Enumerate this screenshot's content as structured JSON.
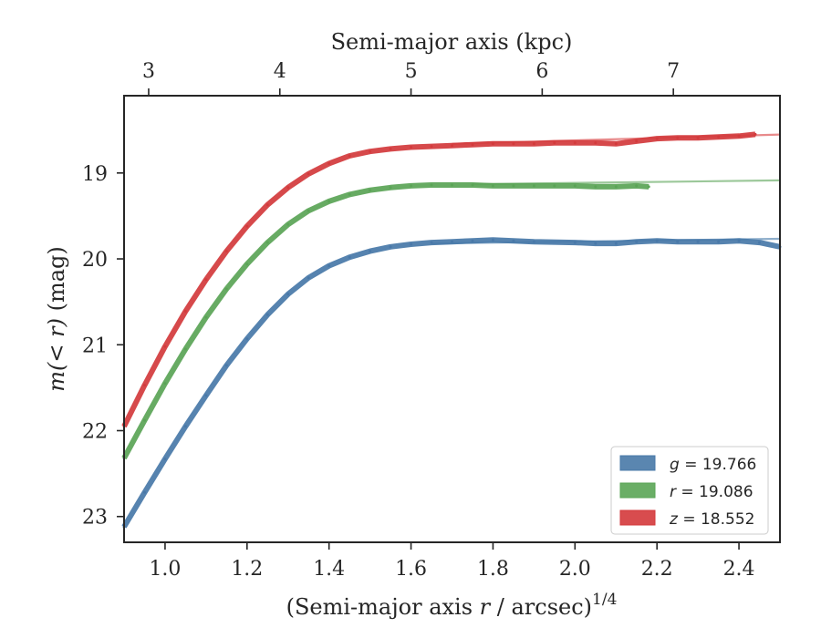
{
  "chart_data": {
    "type": "line",
    "xlabel_prefix": "(Semi-major axis ",
    "xlabel_var": "r",
    "xlabel_suffix": " / arcsec)",
    "xlabel_exp": "1/4",
    "ylabel_func": "m",
    "ylabel_arg": "(< r)",
    "ylabel_unit": " (mag)",
    "top_xlabel": "Semi-major axis (kpc)",
    "xlim": [
      0.9,
      2.5
    ],
    "ylim": [
      23.3,
      18.1
    ],
    "x_ticks": [
      "1.0",
      "1.2",
      "1.4",
      "1.6",
      "1.8",
      "2.0",
      "2.2",
      "2.4"
    ],
    "y_ticks": [
      "19",
      "20",
      "21",
      "22",
      "23"
    ],
    "top_ticks": [
      {
        "label": "3",
        "x": 0.96
      },
      {
        "label": "4",
        "x": 1.28
      },
      {
        "label": "5",
        "x": 1.6
      },
      {
        "label": "6",
        "x": 1.92
      },
      {
        "label": "7",
        "x": 2.24
      }
    ],
    "legend_position": "lower right",
    "series": [
      {
        "name": "g",
        "legend_var": "g",
        "legend_value": " = 19.766",
        "color": "#4878a8",
        "fit_color": "#8eaecb",
        "x": [
          0.9,
          0.95,
          1.0,
          1.05,
          1.1,
          1.15,
          1.2,
          1.25,
          1.3,
          1.35,
          1.4,
          1.45,
          1.5,
          1.55,
          1.6,
          1.65,
          1.7,
          1.75,
          1.8,
          1.85,
          1.9,
          2.0,
          2.05,
          2.1,
          2.15,
          2.2,
          2.25,
          2.3,
          2.35,
          2.4,
          2.45,
          2.5
        ],
        "y": [
          23.12,
          22.72,
          22.33,
          21.95,
          21.59,
          21.24,
          20.93,
          20.65,
          20.41,
          20.22,
          20.08,
          19.98,
          19.91,
          19.86,
          19.83,
          19.81,
          19.8,
          19.79,
          19.78,
          19.79,
          19.8,
          19.81,
          19.82,
          19.82,
          19.8,
          19.79,
          19.8,
          19.8,
          19.8,
          19.79,
          19.81,
          19.86
        ],
        "fit_x": [
          1.65,
          2.5
        ],
        "fit_y": [
          19.82,
          19.766
        ]
      },
      {
        "name": "r",
        "legend_var": "r",
        "legend_value": " = 19.086",
        "color": "#5aa456",
        "fit_color": "#9cc89a",
        "x": [
          0.9,
          0.95,
          1.0,
          1.05,
          1.1,
          1.15,
          1.2,
          1.25,
          1.3,
          1.35,
          1.4,
          1.45,
          1.5,
          1.55,
          1.6,
          1.65,
          1.7,
          1.75,
          1.8,
          1.85,
          1.9,
          1.95,
          2.0,
          2.05,
          2.1,
          2.15,
          2.18
        ],
        "y": [
          22.32,
          21.88,
          21.45,
          21.05,
          20.68,
          20.35,
          20.06,
          19.81,
          19.6,
          19.44,
          19.33,
          19.25,
          19.2,
          19.17,
          19.15,
          19.14,
          19.14,
          19.14,
          19.15,
          19.15,
          19.15,
          19.15,
          19.15,
          19.16,
          19.16,
          19.15,
          19.16
        ],
        "fit_x": [
          1.75,
          2.5
        ],
        "fit_y": [
          19.13,
          19.086
        ]
      },
      {
        "name": "z",
        "legend_var": "z",
        "legend_value": " = 18.552",
        "color": "#d33a3c",
        "fit_color": "#e88a8b",
        "x": [
          0.9,
          0.95,
          1.0,
          1.05,
          1.1,
          1.15,
          1.2,
          1.25,
          1.3,
          1.35,
          1.4,
          1.45,
          1.5,
          1.55,
          1.6,
          1.65,
          1.7,
          1.75,
          1.8,
          1.85,
          1.9,
          1.95,
          2.0,
          2.05,
          2.1,
          2.15,
          2.2,
          2.25,
          2.3,
          2.35,
          2.4,
          2.44
        ],
        "y": [
          21.95,
          21.47,
          21.02,
          20.61,
          20.24,
          19.91,
          19.62,
          19.37,
          19.17,
          19.01,
          18.89,
          18.8,
          18.75,
          18.72,
          18.7,
          18.69,
          18.68,
          18.67,
          18.66,
          18.66,
          18.66,
          18.65,
          18.65,
          18.65,
          18.66,
          18.63,
          18.6,
          18.59,
          18.59,
          18.58,
          18.57,
          18.55
        ],
        "fit_x": [
          1.7,
          2.5
        ],
        "fit_y": [
          18.66,
          18.552
        ]
      }
    ]
  }
}
